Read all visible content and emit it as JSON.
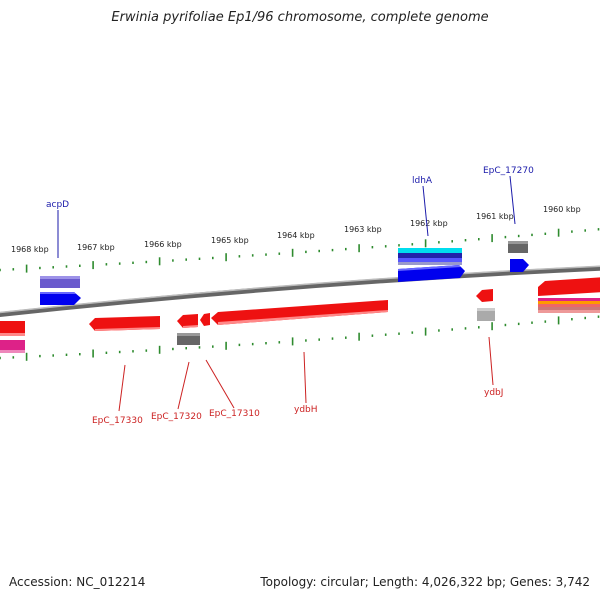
{
  "title": "Erwinia pyrifoliae Ep1/96 chromosome, complete genome",
  "footer": {
    "accession": "Accession: NC_012214",
    "summary": "Topology: circular; Length: 4,026,322 bp; Genes: 3,742"
  },
  "colors": {
    "backbone": "#888888",
    "tick": "#2e8b2e",
    "forward_label": "#1a1aaa",
    "reverse_label": "#cc2222",
    "gene_red": "#ee1111",
    "gene_blue": "#0000ee",
    "gene_purple": "#6a5acd",
    "gene_gray": "#666666",
    "gene_lightgray": "#aaaaaa",
    "gene_cyan": "#00ddee",
    "gene_magenta": "#dd2288",
    "gene_orange": "#ff9900"
  },
  "kbp_labels": [
    "1968 kbp",
    "1967 kbp",
    "1966 kbp",
    "1965 kbp",
    "1964 kbp",
    "1963 kbp",
    "1962 kbp",
    "1961 kbp",
    "1960 kbp"
  ],
  "gene_labels": {
    "top": [
      "acpD",
      "ldhA",
      "EpC_17270"
    ],
    "bottom": [
      "EpC_17330",
      "EpC_17320",
      "EpC_17310",
      "ydbH",
      "ydbJ"
    ]
  }
}
